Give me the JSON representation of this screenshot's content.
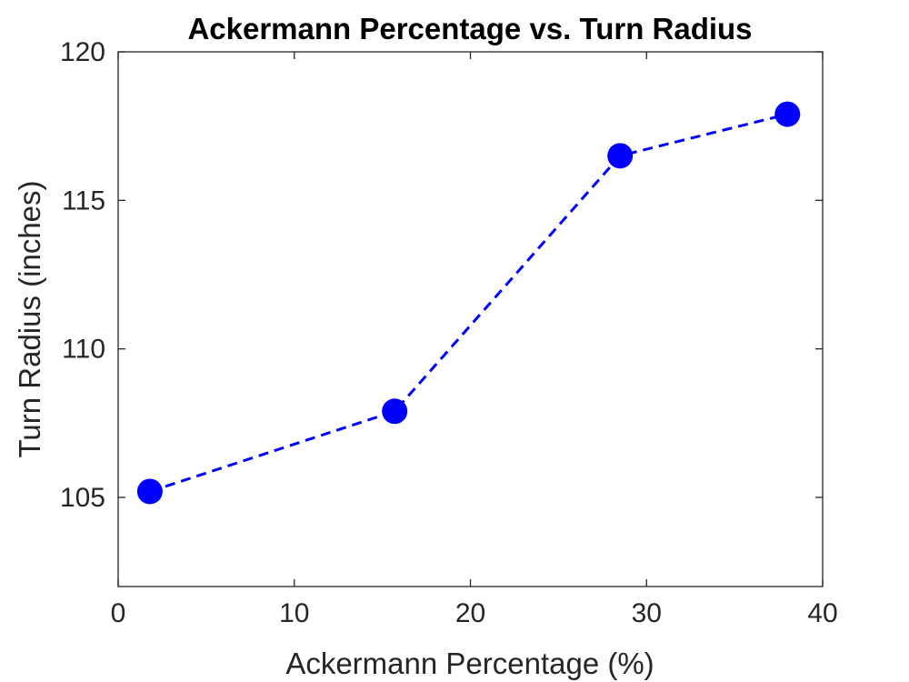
{
  "chart_data": {
    "type": "line",
    "title": "Ackermann Percentage vs. Turn Radius",
    "xlabel": "Ackermann Percentage (%)",
    "ylabel": "Turn Radius (inches)",
    "xlim": [
      0,
      40
    ],
    "ylim": [
      102,
      120
    ],
    "xticks": [
      0,
      10,
      20,
      30,
      40
    ],
    "yticks": [
      105,
      110,
      115,
      120
    ],
    "grid": false,
    "series": [
      {
        "x": [
          1.8,
          15.7,
          28.5,
          38
        ],
        "y": [
          105.2,
          107.9,
          116.5,
          117.9
        ],
        "color": "#0000ff",
        "line_style": "dashed",
        "marker": "circle"
      }
    ]
  }
}
